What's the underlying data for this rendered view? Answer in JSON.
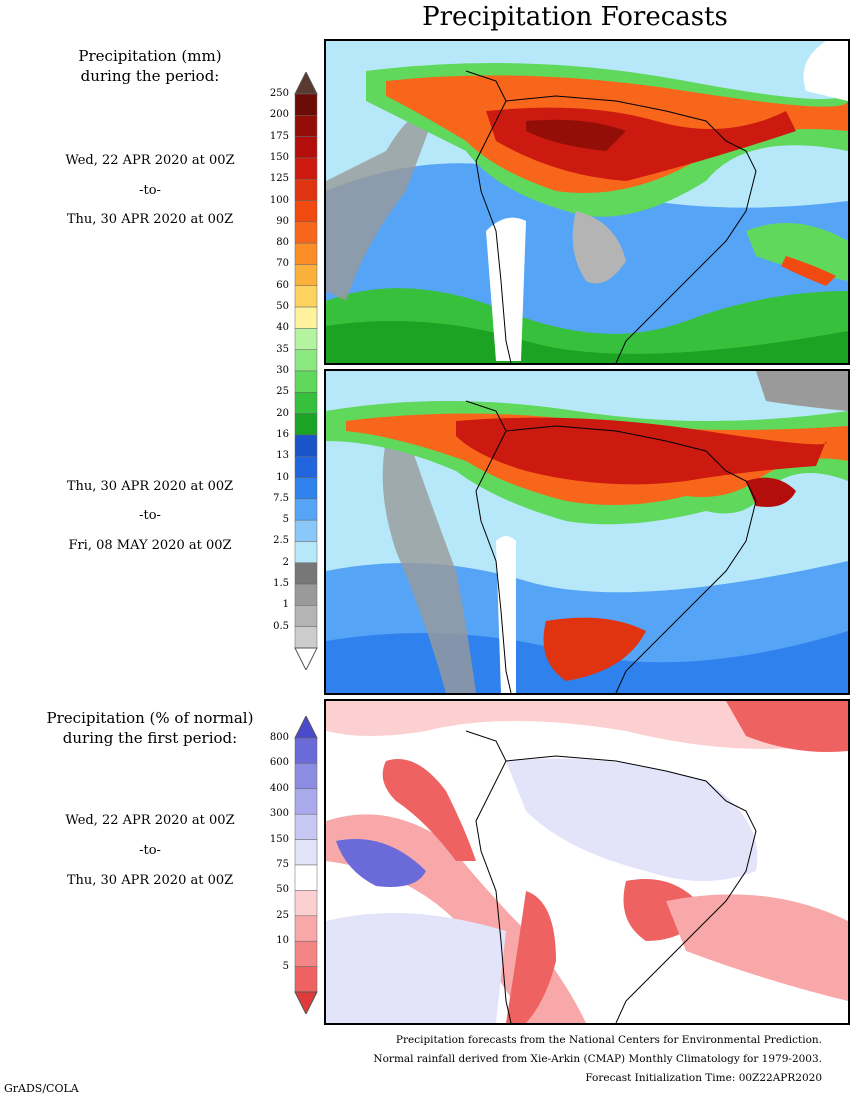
{
  "title": "Precipitation Forecasts",
  "panel1": {
    "heading_line1": "Precipitation (mm)",
    "heading_line2": "during the period:",
    "start": "Wed, 22 APR 2020 at 00Z",
    "sep": "-to-",
    "end": "Thu, 30 APR 2020 at 00Z"
  },
  "panel2": {
    "start": "Thu, 30 APR 2020 at 00Z",
    "sep": "-to-",
    "end": "Fri, 08 MAY 2020 at 00Z"
  },
  "panel3": {
    "heading_line1": "Precipitation (% of normal)",
    "heading_line2": "during the first period:",
    "start": "Wed, 22 APR 2020 at 00Z",
    "sep": "-to-",
    "end": "Thu, 30 APR 2020 at 00Z"
  },
  "precip_colorbar": {
    "ticks": [
      "250",
      "200",
      "175",
      "150",
      "125",
      "100",
      "90",
      "80",
      "70",
      "60",
      "50",
      "40",
      "35",
      "30",
      "25",
      "20",
      "16",
      "13",
      "10",
      "7.5",
      "5",
      "2.5",
      "2",
      "1.5",
      "1",
      "0.5"
    ],
    "colors": [
      "#6a0c05",
      "#940e08",
      "#b30e0b",
      "#cc1a10",
      "#e0330f",
      "#f04a10",
      "#f8661b",
      "#fa8d25",
      "#fbb03b",
      "#fdd25f",
      "#fff29f",
      "#b4f4a0",
      "#8be880",
      "#5fd85c",
      "#37c03b",
      "#1da323",
      "#1a54c8",
      "#2266df",
      "#2f82ee",
      "#56a4f5",
      "#8bc8fa",
      "#b6e8fa",
      "#777777",
      "#9a9a9a",
      "#b4b4b4",
      "#cccccc"
    ],
    "top_arrow_color": "#5a3a2f",
    "bottom_arrow_color": "#ffffff"
  },
  "pct_colorbar": {
    "ticks": [
      "800",
      "600",
      "400",
      "300",
      "150",
      "75",
      "50",
      "25",
      "10",
      "5"
    ],
    "colors": [
      "#6a6ad8",
      "#8c8ce2",
      "#a9a9ec",
      "#c7c7f3",
      "#e3e3fa",
      "#ffffff",
      "#fcd0d0",
      "#f8a8a8",
      "#f38585",
      "#ee6262"
    ],
    "top_arrow_color": "#4a4acc",
    "bottom_arrow_color": "#e03b3b"
  },
  "footer": {
    "line1": "Precipitation forecasts from the National Centers for Environmental Prediction.",
    "line2": "Normal rainfall derived from Xie-Arkin (CMAP) Monthly Climatology for 1979-2003.",
    "line3": "Forecast Initialization Time: 00Z22APR2020"
  },
  "credit": "GrADS/COLA"
}
